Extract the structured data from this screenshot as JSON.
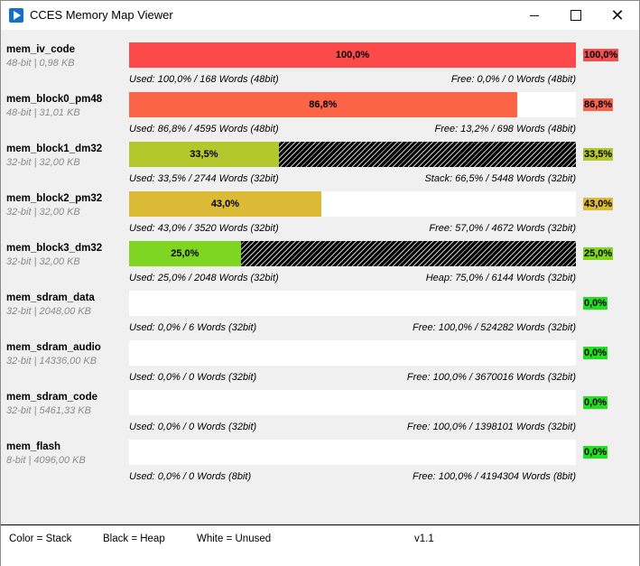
{
  "window": {
    "title": "CCES Memory Map Viewer"
  },
  "colors": {
    "heap_hatch": "#000000",
    "unused": "#ffffff"
  },
  "rows": [
    {
      "name": "mem_iv_code",
      "sub": "48-bit | 0,98 KB",
      "pct_label": "100,0%",
      "fill_pct": 100.0,
      "fill_color": "#fc4a4a",
      "pct_bg": "#f25050",
      "hatch": false,
      "used": "Used: 100,0% / 168 Words (48bit)",
      "free": "Free: 0,0% / 0 Words (48bit)"
    },
    {
      "name": "mem_block0_pm48",
      "sub": "48-bit | 31,01 KB",
      "pct_label": "86,8%",
      "fill_pct": 86.8,
      "fill_color": "#fc6447",
      "pct_bg": "#f7624a",
      "hatch": false,
      "used": "Used: 86,8% / 4595 Words (48bit)",
      "free": "Free: 13,2% / 698 Words (48bit)"
    },
    {
      "name": "mem_block1_dm32",
      "sub": "32-bit | 32,00 KB",
      "pct_label": "33,5%",
      "fill_pct": 33.5,
      "fill_color": "#b2c82d",
      "pct_bg": "#b3c530",
      "hatch": true,
      "used": "Used: 33,5% / 2744 Words (32bit)",
      "free": "Stack: 66,5% / 5448 Words (32bit)"
    },
    {
      "name": "mem_block2_pm32",
      "sub": "32-bit | 32,00 KB",
      "pct_label": "43,0%",
      "fill_pct": 43.0,
      "fill_color": "#dbbb35",
      "pct_bg": "#dbbb35",
      "hatch": false,
      "used": "Used: 43,0% / 3520 Words (32bit)",
      "free": "Free: 57,0% / 4672 Words (32bit)"
    },
    {
      "name": "mem_block3_dm32",
      "sub": "32-bit | 32,00 KB",
      "pct_label": "25,0%",
      "fill_pct": 25.0,
      "fill_color": "#7fd622",
      "pct_bg": "#7fd622",
      "hatch": true,
      "used": "Used: 25,0% / 2048 Words (32bit)",
      "free": "Heap: 75,0% / 6144 Words (32bit)"
    },
    {
      "name": "mem_sdram_data",
      "sub": "32-bit | 2048,00 KB",
      "pct_label": "0,0%",
      "fill_pct": 0.0,
      "fill_color": "#20e020",
      "pct_bg": "#20e020",
      "hatch": false,
      "used": "Used: 0,0% / 6 Words (32bit)",
      "free": "Free: 100,0% / 524282 Words (32bit)"
    },
    {
      "name": "mem_sdram_audio",
      "sub": "32-bit | 14336,00 KB",
      "pct_label": "0,0%",
      "fill_pct": 0.0,
      "fill_color": "#20e020",
      "pct_bg": "#20e020",
      "hatch": false,
      "used": "Used: 0,0% / 0 Words (32bit)",
      "free": "Free: 100,0% / 3670016 Words (32bit)"
    },
    {
      "name": "mem_sdram_code",
      "sub": "32-bit | 5461,33 KB",
      "pct_label": "0,0%",
      "fill_pct": 0.0,
      "fill_color": "#20e020",
      "pct_bg": "#20e020",
      "hatch": false,
      "used": "Used: 0,0% / 0 Words (32bit)",
      "free": "Free: 100,0% / 1398101 Words (32bit)"
    },
    {
      "name": "mem_flash",
      "sub": "8-bit | 4096,00 KB",
      "pct_label": "0,0%",
      "fill_pct": 0.0,
      "fill_color": "#20e020",
      "pct_bg": "#20e020",
      "hatch": false,
      "used": "Used: 0,0% / 0 Words (8bit)",
      "free": "Free: 100,0% / 4194304 Words (8bit)"
    }
  ],
  "status": {
    "legend_stack": "Color = Stack",
    "legend_heap": "Black = Heap",
    "legend_unused": "White = Unused",
    "version": "v1.1"
  }
}
